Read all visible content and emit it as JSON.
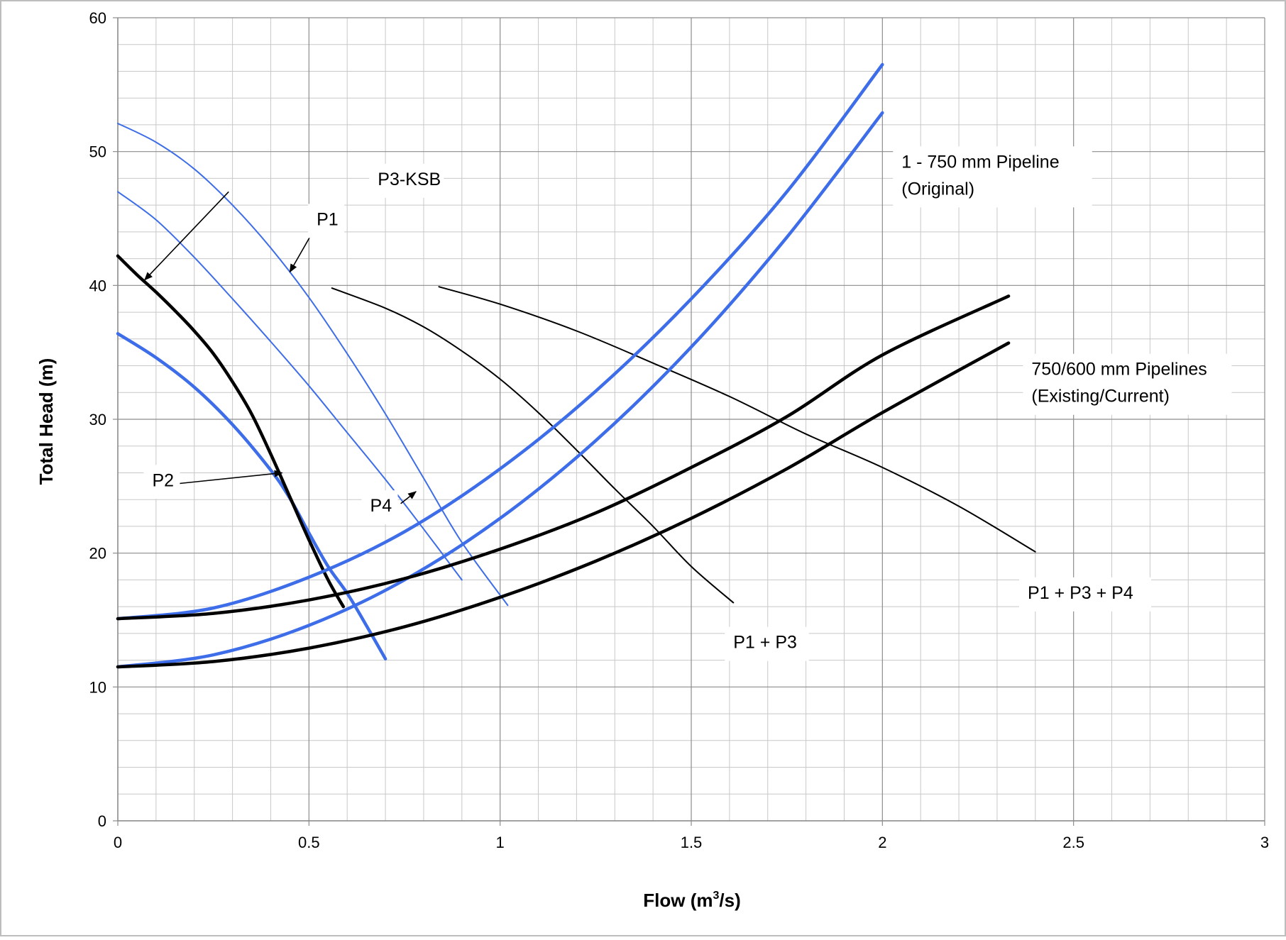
{
  "chart_data": {
    "type": "line",
    "title": "",
    "xlabel": "Flow (m",
    "xlabel_sup": "3",
    "xlabel_end": "/s)",
    "ylabel": "Total Head (m)",
    "xlim": [
      0,
      3
    ],
    "ylim": [
      0,
      60
    ],
    "xticks": [
      "0",
      "0.5",
      "1",
      "1.5",
      "2",
      "2.5",
      "3"
    ],
    "yticks": [
      "0",
      "10",
      "20",
      "30",
      "40",
      "50",
      "60"
    ],
    "grid": true,
    "colors": {
      "pump_blue": "#3d6de8",
      "black": "#000000",
      "grid_major": "#8c8c8c",
      "grid_minor": "#c8c8c8"
    },
    "series": [
      {
        "id": "p1",
        "name": "P1",
        "color": "#3d6de8",
        "weight": "thin",
        "x": [
          0,
          0.1,
          0.2,
          0.3,
          0.4,
          0.5,
          0.6,
          0.7,
          0.8,
          0.9,
          1.02
        ],
        "y": [
          52.1,
          50.7,
          48.7,
          46.0,
          42.8,
          39.1,
          34.9,
          30.4,
          25.6,
          20.8,
          16.1
        ]
      },
      {
        "id": "p4",
        "name": "P4",
        "color": "#3d6de8",
        "weight": "thin",
        "x": [
          0,
          0.1,
          0.2,
          0.3,
          0.4,
          0.5,
          0.6,
          0.7,
          0.8,
          0.9
        ],
        "y": [
          47.0,
          44.9,
          42.1,
          39.0,
          35.8,
          32.5,
          29.0,
          25.5,
          21.8,
          18.0
        ]
      },
      {
        "id": "p2",
        "name": "P2",
        "color": "#3d6de8",
        "weight": "thick",
        "x": [
          0,
          0.1,
          0.2,
          0.3,
          0.4,
          0.45,
          0.5,
          0.55,
          0.6,
          0.65,
          0.7
        ],
        "y": [
          36.4,
          34.6,
          32.4,
          29.6,
          26.2,
          24.1,
          21.5,
          19.0,
          17.0,
          14.6,
          12.1
        ]
      },
      {
        "id": "p3ksb",
        "name": "P3-KSB",
        "color": "#000000",
        "weight": "thick",
        "x": [
          0,
          0.05,
          0.1,
          0.15,
          0.2,
          0.25,
          0.3,
          0.35,
          0.4,
          0.45,
          0.5,
          0.55,
          0.59
        ],
        "y": [
          42.2,
          40.8,
          39.5,
          38.1,
          36.6,
          34.9,
          32.8,
          30.4,
          27.4,
          24.2,
          21.0,
          18.0,
          16.0
        ]
      },
      {
        "id": "p1p3",
        "name": "P1 + P3",
        "color": "#000000",
        "weight": "thin",
        "x": [
          0.56,
          0.7,
          0.8,
          0.9,
          1.0,
          1.1,
          1.2,
          1.3,
          1.4,
          1.5,
          1.61
        ],
        "y": [
          39.8,
          38.3,
          36.9,
          35.1,
          33.0,
          30.5,
          27.7,
          24.8,
          22.0,
          19.0,
          16.3
        ]
      },
      {
        "id": "p1p3p4",
        "name": "P1 + P3 + P4",
        "color": "#000000",
        "weight": "thin",
        "x": [
          0.84,
          1.0,
          1.2,
          1.4,
          1.6,
          1.8,
          2.0,
          2.2,
          2.4
        ],
        "y": [
          39.9,
          38.6,
          36.6,
          34.2,
          31.7,
          28.9,
          26.4,
          23.5,
          20.1
        ]
      },
      {
        "id": "orig_a",
        "name": "1 - 750 mm Pipeline (Original)",
        "color": "#3d6de8",
        "weight": "thick",
        "x": [
          0,
          0.25,
          0.5,
          0.75,
          1.0,
          1.25,
          1.5,
          1.75,
          2.0
        ],
        "y": [
          15.1,
          15.9,
          18.2,
          21.6,
          26.3,
          32.1,
          39.0,
          47.0,
          56.5
        ]
      },
      {
        "id": "orig_b",
        "name": "1 - 750 mm Pipeline (Original)",
        "color": "#3d6de8",
        "weight": "thick",
        "x": [
          0,
          0.25,
          0.5,
          0.75,
          1.0,
          1.25,
          1.5,
          1.75,
          2.0
        ],
        "y": [
          11.5,
          12.4,
          14.6,
          18.0,
          22.6,
          28.4,
          35.4,
          43.6,
          52.9
        ]
      },
      {
        "id": "curr_a",
        "name": "750/600 mm Pipelines (Existing/Current)",
        "color": "#000000",
        "weight": "thick",
        "x": [
          0,
          0.25,
          0.5,
          0.75,
          1.0,
          1.25,
          1.5,
          1.75,
          2.0,
          2.33
        ],
        "y": [
          15.1,
          15.5,
          16.5,
          18.1,
          20.3,
          23.0,
          26.4,
          30.2,
          34.8,
          39.2
        ]
      },
      {
        "id": "curr_b",
        "name": "750/600 mm Pipelines (Existing/Current)",
        "color": "#000000",
        "weight": "thick",
        "x": [
          0,
          0.25,
          0.5,
          0.75,
          1.0,
          1.25,
          1.5,
          1.75,
          2.0,
          2.33
        ],
        "y": [
          11.5,
          11.9,
          12.9,
          14.5,
          16.7,
          19.4,
          22.6,
          26.3,
          30.5,
          35.7
        ]
      }
    ],
    "annotations": [
      {
        "id": "p3ksb",
        "lines": [
          "P3-KSB"
        ],
        "x": 0.68,
        "y": 47.5,
        "arrow_from": [
          0.29,
          47.0
        ],
        "arrow_to": [
          0.07,
          40.4
        ],
        "color": "#000000"
      },
      {
        "id": "p1",
        "lines": [
          "P1"
        ],
        "x": 0.52,
        "y": 44.5,
        "arrow_from": [
          0.51,
          44.0
        ],
        "arrow_to": [
          0.45,
          41.0
        ],
        "color": "#000000"
      },
      {
        "id": "p2",
        "lines": [
          "P2"
        ],
        "x": 0.09,
        "y": 25.0,
        "arrow_from": [
          0.16,
          25.2
        ],
        "arrow_to": [
          0.43,
          26.0
        ],
        "color": "#000000"
      },
      {
        "id": "p4",
        "lines": [
          "P4"
        ],
        "x": 0.66,
        "y": 23.1,
        "arrow_from": [
          0.74,
          23.7
        ],
        "arrow_to": [
          0.78,
          24.6
        ],
        "color": "#000000"
      },
      {
        "id": "orig",
        "lines": [
          "1 - 750 mm Pipeline",
          "(Original)"
        ],
        "x": 2.05,
        "y": 48.8
      },
      {
        "id": "curr",
        "lines": [
          "750/600 mm Pipelines",
          "(Existing/Current)"
        ],
        "x": 2.39,
        "y": 33.3
      },
      {
        "id": "p1p3p4",
        "lines": [
          "P1 + P3 + P4"
        ],
        "x": 2.38,
        "y": 16.6
      },
      {
        "id": "p1p3",
        "lines": [
          "P1 + P3"
        ],
        "x": 1.61,
        "y": 12.9
      }
    ]
  }
}
